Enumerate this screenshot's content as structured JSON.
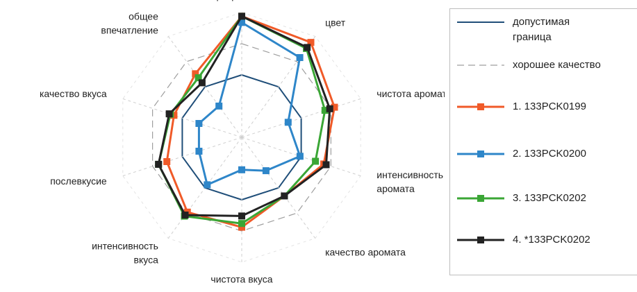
{
  "chart_data": {
    "type": "radar",
    "title": "",
    "axes": [
      "прозрачность",
      "цвет",
      "чистота аромата",
      "интенсивность\nаромата",
      "качество аромата",
      "чистота вкуса",
      "интенсивность\nвкуса",
      "послевкусие",
      "качество вкуса",
      "общее\nвпечатление"
    ],
    "scale_max": 10,
    "reference": [
      {
        "name": "допустимая\nграница",
        "color": "#1f4e79",
        "dash": "solid",
        "values": [
          5,
          5,
          5,
          5,
          5,
          5,
          5,
          5,
          5,
          5
        ]
      },
      {
        "name": "хорошее качество",
        "color": "#9e9e9e",
        "dash": "dashed",
        "values": [
          7.5,
          7.5,
          7.5,
          7.5,
          7.5,
          7.5,
          7.5,
          7.5,
          7.5,
          7.5
        ]
      }
    ],
    "series": [
      {
        "name": "1. 133PCK0199",
        "color": "#f05a28",
        "values": [
          9.7,
          9.4,
          7.8,
          6.9,
          5.8,
          7.2,
          7.4,
          6.3,
          5.7,
          6.3
        ]
      },
      {
        "name": "2. 133PCK0200",
        "color": "#2e86c9",
        "values": [
          9.2,
          7.9,
          3.9,
          4.9,
          3.3,
          2.6,
          4.7,
          3.6,
          3.6,
          3.1
        ]
      },
      {
        "name": "3. 133PCK0202",
        "color": "#3aa635",
        "values": [
          9.7,
          8.8,
          7.0,
          6.2,
          5.8,
          6.9,
          7.8,
          7.0,
          6.0,
          5.9
        ]
      },
      {
        "name": "4. *133PCK0202",
        "color": "#222222",
        "values": [
          9.7,
          8.9,
          7.4,
          7.1,
          5.8,
          6.3,
          7.7,
          7.0,
          6.1,
          5.4
        ]
      }
    ],
    "legend_position": "right"
  }
}
